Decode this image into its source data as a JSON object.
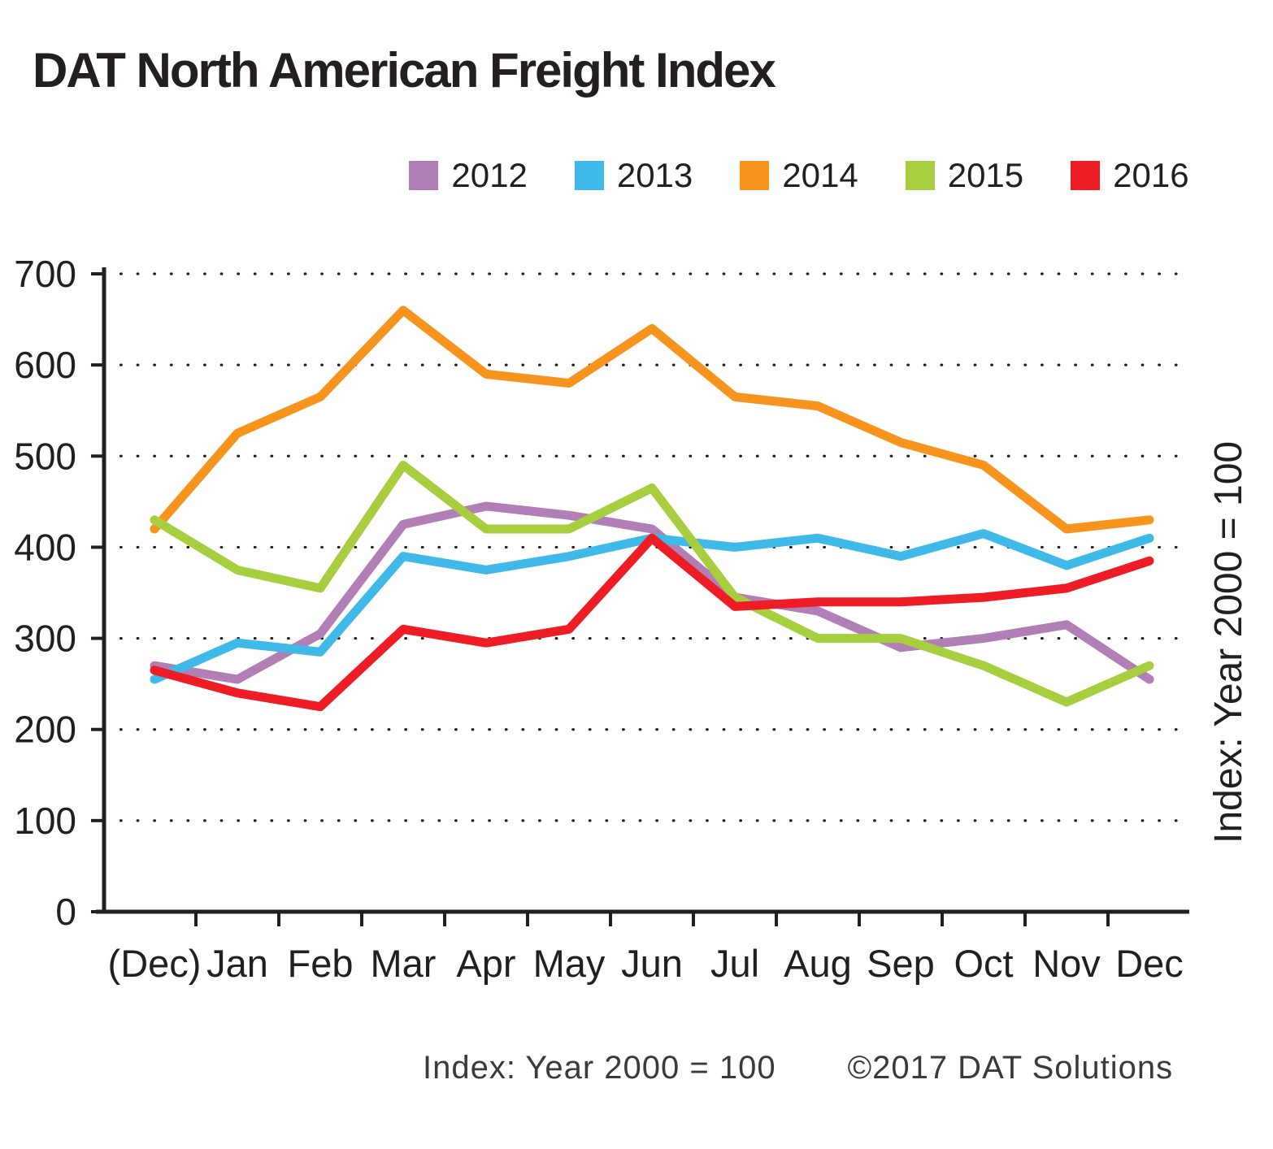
{
  "title": "DAT North American Freight Index",
  "right_axis_label": "Index: Year 2000 = 100",
  "footer": {
    "index_note": "Index: Year 2000 = 100",
    "copyright": "©2017 DAT Solutions"
  },
  "chart_data": {
    "type": "line",
    "title": "DAT North American Freight Index",
    "xlabel": "",
    "ylabel": "Index: Year 2000 = 100",
    "ylim": [
      0,
      700
    ],
    "ytick_interval": 100,
    "grid": "dotted-horizontal",
    "legend_position": "top",
    "categories": [
      "(Dec)",
      "Jan",
      "Feb",
      "Mar",
      "Apr",
      "May",
      "Jun",
      "Jul",
      "Aug",
      "Sep",
      "Oct",
      "Nov",
      "Dec"
    ],
    "series": [
      {
        "name": "2012",
        "color": "#b17fb5",
        "values": [
          270,
          255,
          305,
          425,
          445,
          435,
          420,
          345,
          330,
          290,
          300,
          315,
          255
        ]
      },
      {
        "name": "2013",
        "color": "#3fb9e8",
        "values": [
          255,
          295,
          285,
          390,
          375,
          390,
          410,
          400,
          410,
          390,
          415,
          380,
          410
        ]
      },
      {
        "name": "2014",
        "color": "#f7941e",
        "values": [
          420,
          525,
          565,
          660,
          590,
          580,
          640,
          565,
          555,
          515,
          490,
          420,
          430
        ]
      },
      {
        "name": "2015",
        "color": "#a7ce3f",
        "values": [
          430,
          375,
          355,
          490,
          420,
          420,
          465,
          345,
          300,
          300,
          270,
          230,
          270
        ]
      },
      {
        "name": "2016",
        "color": "#ee1c25",
        "values": [
          265,
          240,
          225,
          310,
          295,
          310,
          410,
          335,
          340,
          340,
          345,
          355,
          385
        ]
      }
    ]
  }
}
